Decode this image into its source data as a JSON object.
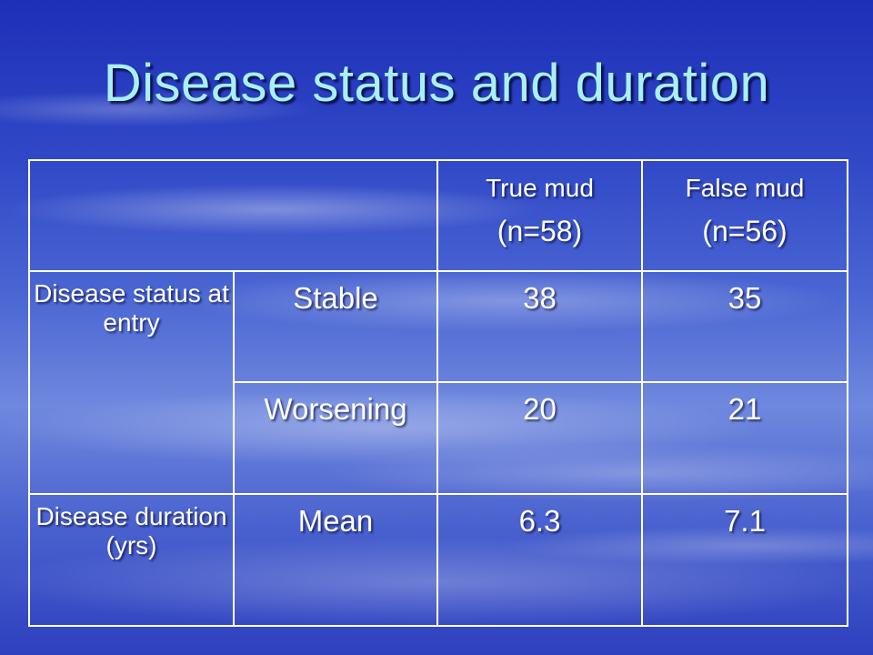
{
  "slide": {
    "title": "Disease status and duration"
  },
  "table": {
    "header": {
      "col1": {
        "line1": "True mud",
        "line2": "(n=58)"
      },
      "col2": {
        "line1": "False mud",
        "line2": "(n=56)"
      }
    },
    "groups": [
      {
        "label": "Disease status at entry",
        "rows": [
          {
            "sublabel": "Stable",
            "values": [
              "38",
              "35"
            ]
          },
          {
            "sublabel": "Worsening",
            "values": [
              "20",
              "21"
            ]
          }
        ]
      },
      {
        "label": "Disease duration (yrs)",
        "rows": [
          {
            "sublabel": "Mean",
            "values": [
              "6.3",
              "7.1"
            ]
          }
        ]
      }
    ]
  }
}
